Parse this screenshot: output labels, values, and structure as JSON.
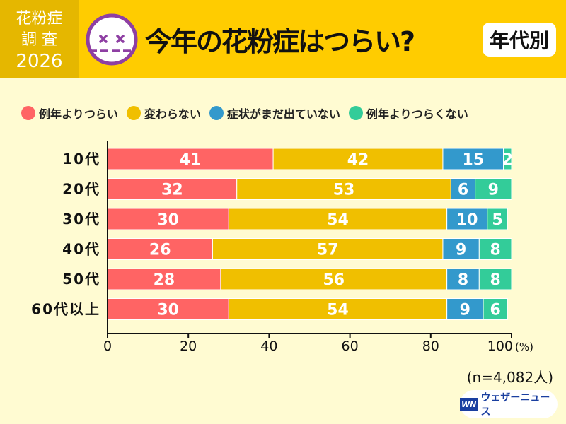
{
  "header": {
    "badge_line1": "花粉症",
    "badge_line2": "調 査",
    "badge_line3": "2026",
    "title": "今年の花粉症はつらい?",
    "tag": "年代別",
    "icon": "dizzy-face-icon"
  },
  "footer": {
    "sample": "(n=4,082人)",
    "logo_mark": "WN",
    "logo_text": "ウェザーニュース"
  },
  "chart_data": {
    "type": "bar",
    "stacked": true,
    "orientation": "horizontal",
    "categories": [
      "10代",
      "20代",
      "30代",
      "40代",
      "50代",
      "60代以上"
    ],
    "series": [
      {
        "name": "例年よりつらい",
        "color": "#ff6464",
        "values": [
          41,
          32,
          30,
          26,
          28,
          30
        ]
      },
      {
        "name": "変わらない",
        "color": "#f0bf00",
        "values": [
          42,
          53,
          54,
          57,
          56,
          54
        ]
      },
      {
        "name": "症状がまだ出ていない",
        "color": "#3399cc",
        "values": [
          15,
          6,
          10,
          9,
          8,
          9
        ]
      },
      {
        "name": "例年よりつらくない",
        "color": "#33cc99",
        "values": [
          2,
          9,
          5,
          8,
          8,
          6
        ]
      }
    ],
    "xlim": [
      0,
      100
    ],
    "xticks": [
      0,
      20,
      40,
      60,
      80,
      100
    ],
    "xunit": "(%)",
    "legend": "top",
    "grid": false
  }
}
